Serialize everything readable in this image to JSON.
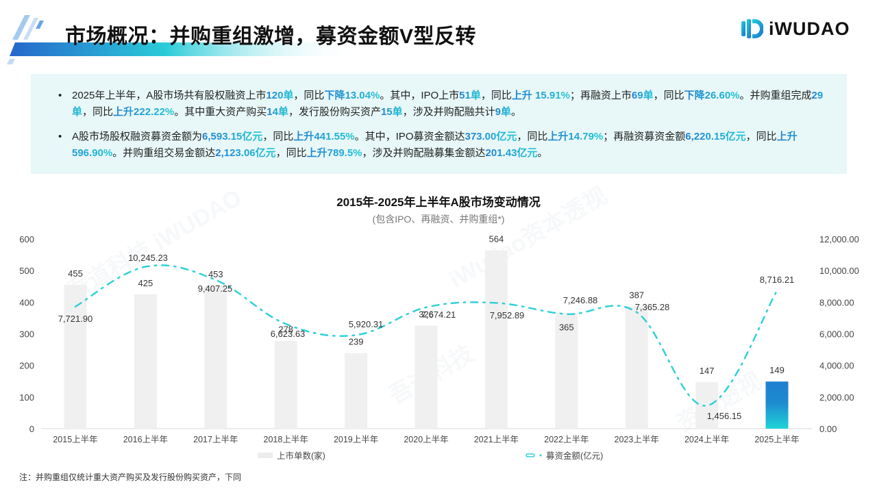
{
  "header": {
    "title": "市场概况：并购重组激增，募资金额V型反转",
    "logo_text": "iWUDAO"
  },
  "summary": {
    "bullets": [
      [
        {
          "t": "2025年上半年，A股市场共有股权融资上市"
        },
        {
          "t": "120单",
          "hl": true
        },
        {
          "t": "，同比"
        },
        {
          "t": "下降13.04%",
          "hl": true
        },
        {
          "t": "。其中，IPO上市"
        },
        {
          "t": "51单",
          "hl": true
        },
        {
          "t": "，同比"
        },
        {
          "t": "上升 15.91%",
          "hl": true
        },
        {
          "t": "；再融资上市"
        },
        {
          "t": "69单",
          "hl": true
        },
        {
          "t": "，同比"
        },
        {
          "t": "下降26.60%",
          "hl": true
        },
        {
          "t": "。并购重组完成"
        },
        {
          "t": "29单",
          "hl": true
        },
        {
          "t": "，同比"
        },
        {
          "t": "上升222.22%",
          "hl": true
        },
        {
          "t": "。其中重大资产购买"
        },
        {
          "t": "14单",
          "hl": true
        },
        {
          "t": "，发行股份购买资产"
        },
        {
          "t": "15单",
          "hl": true
        },
        {
          "t": "，涉及并购配融共计"
        },
        {
          "t": "9单",
          "hl": true
        },
        {
          "t": "。"
        }
      ],
      [
        {
          "t": "A股市场股权融资募资金额为"
        },
        {
          "t": "6,593.15亿元",
          "hl": true
        },
        {
          "t": "，同比"
        },
        {
          "t": "上升441.55%",
          "hl": true
        },
        {
          "t": "。其中，IPO募资金额达"
        },
        {
          "t": "373.00亿元",
          "hl": true
        },
        {
          "t": "，同比"
        },
        {
          "t": "上升14.79%",
          "hl": true
        },
        {
          "t": "；再融资募资金额"
        },
        {
          "t": "6,220.15亿元",
          "hl": true
        },
        {
          "t": "，同比"
        },
        {
          "t": "上升596.90%",
          "hl": true
        },
        {
          "t": "。并购重组交易金额达"
        },
        {
          "t": "2,123.06亿元",
          "hl": true
        },
        {
          "t": "，同比"
        },
        {
          "t": "上升789.5%",
          "hl": true
        },
        {
          "t": "，涉及并购配融募集金额达"
        },
        {
          "t": "201.43亿元",
          "hl": true
        },
        {
          "t": "。"
        }
      ]
    ]
  },
  "chart": {
    "title": "2015年-2025年上半年A股市场变动情况",
    "subtitle": "(包含IPO、再融资、并购重组*)",
    "legend_bar": "上市单数(家)",
    "legend_line": "募资金额(亿元)"
  },
  "chart_data": {
    "type": "bar",
    "title": "2015年-2025年上半年A股市场变动情况",
    "subtitle": "(包含IPO、再融资、并购重组*)",
    "categories": [
      "2015上半年",
      "2016上半年",
      "2017上半年",
      "2018上半年",
      "2019上半年",
      "2020上半年",
      "2021上半年",
      "2022上半年",
      "2023上半年",
      "2024上半年",
      "2025上半年"
    ],
    "series": [
      {
        "name": "上市单数(家)",
        "type": "bar",
        "axis": "left",
        "values": [
          455,
          425,
          453,
          278,
          239,
          326,
          564,
          365,
          387,
          147,
          149
        ]
      },
      {
        "name": "募资金额(亿元)",
        "type": "line",
        "axis": "right",
        "values": [
          7721.9,
          10245.23,
          9407.25,
          6623.63,
          5920.31,
          7674.21,
          7952.89,
          7246.88,
          7365.28,
          1456.15,
          8716.21
        ]
      }
    ],
    "value_labels_bar": [
      "455",
      "425",
      "453",
      "278",
      "239",
      "326",
      "564",
      "365",
      "387",
      "147",
      "149"
    ],
    "value_labels_line": [
      "7,721.90",
      "10,245.23",
      "9,407.25",
      "6,623.63",
      "5,920.31",
      "7,674.21",
      "7,952.89",
      "7,246.88",
      "7,365.28",
      "1,456.15",
      "8,716.21"
    ],
    "y_left": {
      "ticks": [
        0,
        100,
        200,
        300,
        400,
        500,
        600
      ],
      "ylim": [
        0,
        600
      ]
    },
    "y_right": {
      "ticks": [
        "0.00",
        "2,000.00",
        "4,000.00",
        "6,000.00",
        "8,000.00",
        "10,000.00",
        "12,000.00"
      ],
      "ylim": [
        0,
        12000
      ]
    },
    "legend_position": "bottom",
    "grid": false
  },
  "colors": {
    "bar_default": "#f0f0f0",
    "bar_highlight_top": "#1f7fd1",
    "bar_highlight_bottom": "#1fd3d8",
    "line": "#2fd0d8",
    "highlight_text": "#1f9fd6",
    "summary_bg": "#e8f7f7"
  },
  "footer": {
    "note": "注：并购重组仅统计重大资产购买及发行股份购买资产，下同"
  }
}
